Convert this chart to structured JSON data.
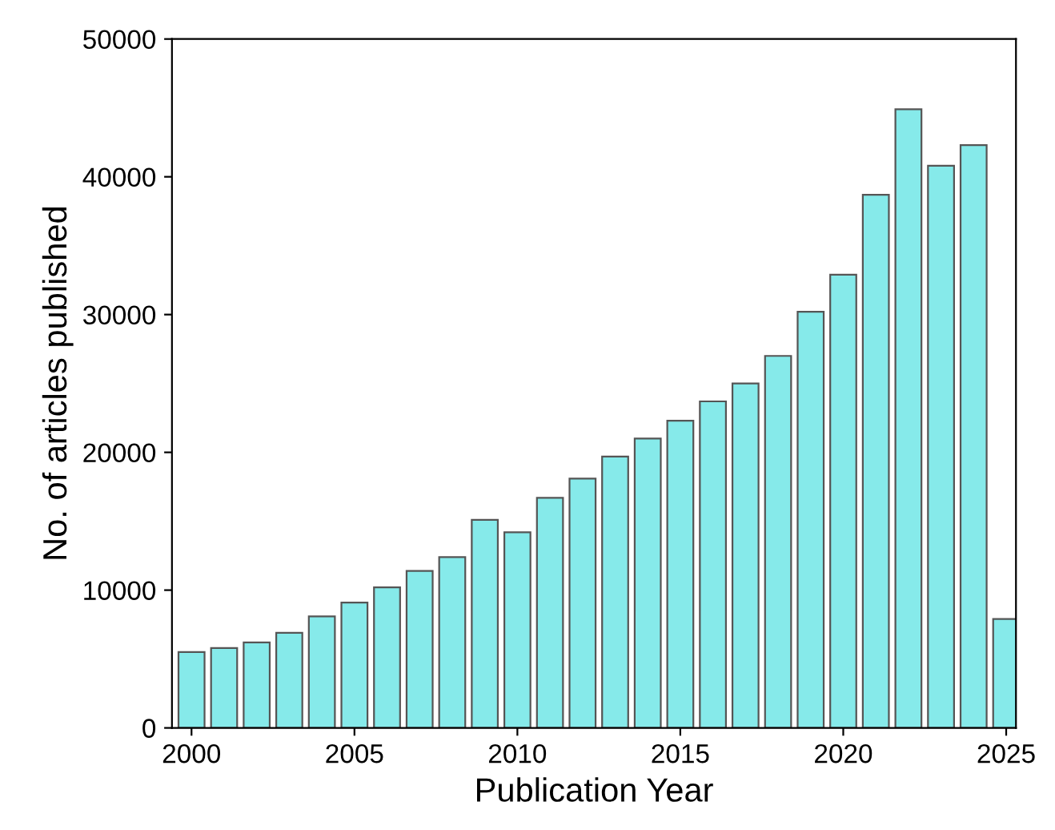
{
  "chart_data": {
    "type": "bar",
    "xlabel": "Publication Year",
    "ylabel": "No. of articles published",
    "x": [
      2000,
      2001,
      2002,
      2003,
      2004,
      2005,
      2006,
      2007,
      2008,
      2009,
      2010,
      2011,
      2012,
      2013,
      2014,
      2015,
      2016,
      2017,
      2018,
      2019,
      2020,
      2021,
      2022,
      2023,
      2024,
      2025
    ],
    "values": [
      5500,
      5800,
      6200,
      6900,
      8100,
      9100,
      10200,
      11400,
      12400,
      15100,
      14200,
      16700,
      18100,
      19700,
      21000,
      22300,
      23700,
      25000,
      27000,
      30200,
      32900,
      38700,
      44900,
      40800,
      42300,
      7900
    ],
    "color": "#86eaea",
    "xlim": [
      1999.4,
      2025.3
    ],
    "xticks": [
      2000,
      2005,
      2010,
      2015,
      2020,
      2025
    ],
    "ylim": [
      0,
      50000
    ],
    "yticks": [
      0,
      10000,
      20000,
      30000,
      40000,
      50000
    ],
    "grid": false,
    "legend": false
  }
}
